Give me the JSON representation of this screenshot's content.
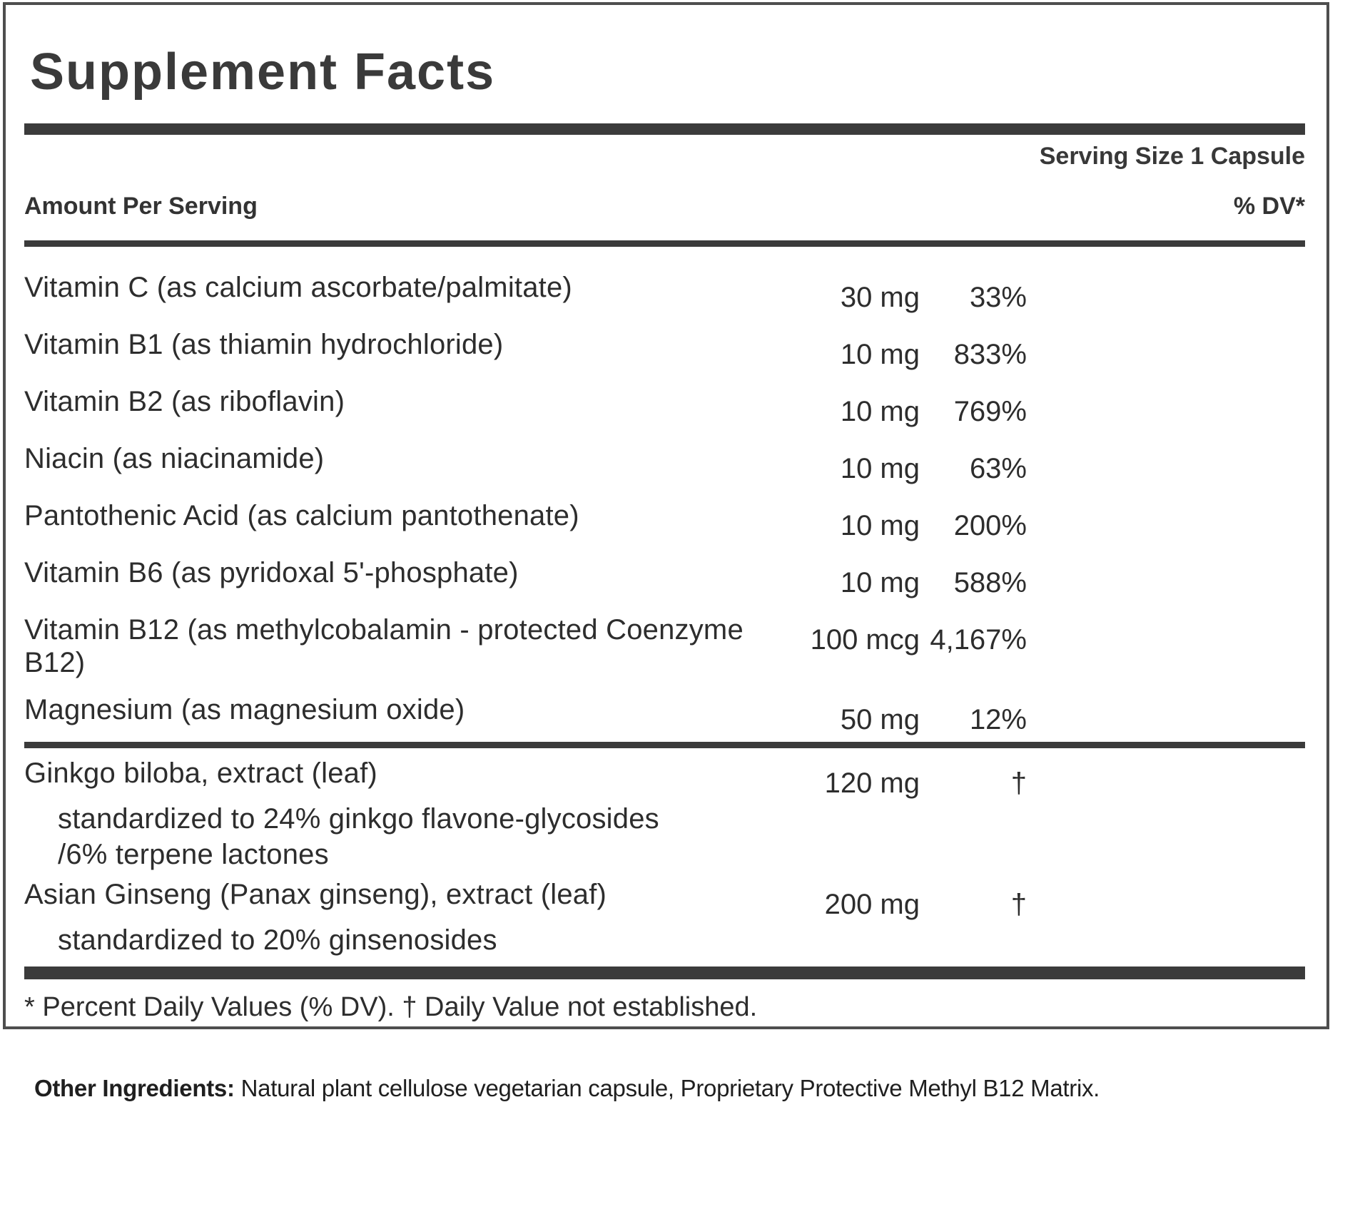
{
  "colors": {
    "background": "#ffffff",
    "text": "#2d2d2d",
    "heading": "#3a3a3a",
    "bar": "#3b3b3b",
    "box_border": "#4e4e4e"
  },
  "panel": {
    "title": "Supplement Facts",
    "serving_size": "Serving Size 1 Capsule",
    "amount_header": "Amount Per Serving",
    "dv_header": "% DV*",
    "vitamin_rows": [
      {
        "name": "Vitamin C (as calcium ascorbate/palmitate)",
        "amount": "30 mg",
        "dv": "33%"
      },
      {
        "name": "Vitamin B1 (as thiamin hydrochloride)",
        "amount": "10 mg",
        "dv": "833%"
      },
      {
        "name": "Vitamin B2 (as riboflavin)",
        "amount": "10 mg",
        "dv": "769%"
      },
      {
        "name": "Niacin (as niacinamide)",
        "amount": "10 mg",
        "dv": "63%"
      },
      {
        "name": "Pantothenic Acid (as calcium pantothenate)",
        "amount": "10 mg",
        "dv": "200%"
      },
      {
        "name": "Vitamin B6 (as pyridoxal 5'-phosphate)",
        "amount": "10 mg",
        "dv": "588%"
      },
      {
        "name": "Vitamin B12 (as methylcobalamin - protected Coenzyme B12)",
        "amount": "100 mcg",
        "dv": "4,167%"
      },
      {
        "name": "Magnesium (as magnesium oxide)",
        "amount": "50 mg",
        "dv": "12%"
      }
    ],
    "botanical_rows": [
      {
        "name": "Ginkgo biloba, extract (leaf)",
        "amount": "120 mg",
        "dv": "†",
        "subs": [
          "standardized to 24% ginkgo flavone-glycosides",
          "/6% terpene lactones"
        ]
      },
      {
        "name": "Asian Ginseng (Panax ginseng), extract (leaf)",
        "amount": "200 mg",
        "dv": "†",
        "subs": [
          "standardized to 20% ginsenosides"
        ]
      }
    ],
    "footnote": "* Percent Daily Values (% DV). † Daily Value not established."
  },
  "other_ingredients": {
    "label": "Other Ingredients:",
    "text": "Natural plant cellulose vegetarian capsule, Proprietary Protective Methyl B12 Matrix."
  }
}
